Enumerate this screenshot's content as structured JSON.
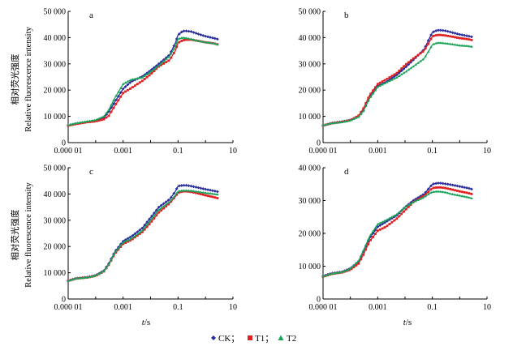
{
  "figure": {
    "ylabel_cn": "相对荧光强度",
    "ylabel_en": "Relative fluorescence intensity",
    "xlabel_var": "t",
    "xlabel_unit": "/s"
  },
  "legend": {
    "items": [
      {
        "label": "CK；",
        "color": "#2b2f9e",
        "marker": "diamond"
      },
      {
        "label": "T1；",
        "color": "#e02020",
        "marker": "square"
      },
      {
        "label": "T2",
        "color": "#1aa35a",
        "marker": "triangle"
      }
    ]
  },
  "colors": {
    "CK": "#2b2f9e",
    "T1": "#e02020",
    "T2": "#1aa35a"
  },
  "chart_data": [
    {
      "type": "line",
      "panel": "a",
      "title": "",
      "xlabel": "t/s",
      "ylabel": "Relative fluorescence intensity",
      "xscale": "log",
      "xlim": [
        1e-05,
        10
      ],
      "ylim": [
        0,
        50000
      ],
      "xticks": [
        {
          "v": 1e-05,
          "label": "0.000 01"
        },
        {
          "v": 0.001,
          "label": "0.001"
        },
        {
          "v": 0.1,
          "label": "0.1"
        },
        {
          "v": 10,
          "label": "10"
        }
      ],
      "yticks": [
        {
          "v": 0,
          "label": "0"
        },
        {
          "v": 10000,
          "label": "10 000"
        },
        {
          "v": 20000,
          "label": "20 000"
        },
        {
          "v": 30000,
          "label": "30 000"
        },
        {
          "v": 40000,
          "label": "40 000"
        },
        {
          "v": 50000,
          "label": "50 000"
        }
      ],
      "x": [
        1e-05,
        2e-05,
        5e-05,
        0.0001,
        0.0002,
        0.0003,
        0.0005,
        0.001,
        0.002,
        0.005,
        0.01,
        0.02,
        0.05,
        0.08,
        0.1,
        0.15,
        0.2,
        0.3,
        0.5,
        1,
        2,
        3
      ],
      "series": [
        {
          "name": "CK",
          "values": [
            6600,
            7300,
            7900,
            8400,
            9600,
            11800,
            15500,
            20500,
            23300,
            25200,
            27500,
            30000,
            33500,
            38000,
            41000,
            42500,
            42500,
            42300,
            41500,
            40500,
            39800,
            39300
          ]
        },
        {
          "name": "T1",
          "values": [
            6500,
            7100,
            7800,
            8100,
            8900,
            10200,
            14000,
            18900,
            20800,
            23500,
            26000,
            29000,
            31500,
            35000,
            38000,
            39000,
            39200,
            39200,
            38800,
            38200,
            37800,
            37300
          ]
        },
        {
          "name": "T2",
          "values": [
            6700,
            7400,
            8100,
            8600,
            10000,
            12500,
            17000,
            22300,
            24000,
            24800,
            26900,
            29300,
            33000,
            36500,
            39500,
            40000,
            39800,
            39400,
            38800,
            38200,
            37800,
            37200
          ]
        }
      ]
    },
    {
      "type": "line",
      "panel": "b",
      "title": "",
      "xlabel": "t/s",
      "ylabel": "Relative fluorescence intensity",
      "xscale": "log",
      "xlim": [
        1e-05,
        10
      ],
      "ylim": [
        0,
        50000
      ],
      "xticks": [
        {
          "v": 1e-05,
          "label": "0.000 01"
        },
        {
          "v": 0.001,
          "label": "0.001"
        },
        {
          "v": 0.1,
          "label": "0.1"
        },
        {
          "v": 10,
          "label": "10"
        }
      ],
      "yticks": [
        {
          "v": 0,
          "label": "0"
        },
        {
          "v": 10000,
          "label": "10 000"
        },
        {
          "v": 20000,
          "label": "20 000"
        },
        {
          "v": 30000,
          "label": "30 000"
        },
        {
          "v": 40000,
          "label": "40 000"
        },
        {
          "v": 50000,
          "label": "50 000"
        }
      ],
      "x": [
        1e-05,
        2e-05,
        5e-05,
        0.0001,
        0.0002,
        0.0003,
        0.0005,
        0.001,
        0.002,
        0.005,
        0.01,
        0.02,
        0.05,
        0.08,
        0.1,
        0.15,
        0.2,
        0.3,
        0.5,
        1,
        2,
        3
      ],
      "series": [
        {
          "name": "CK",
          "values": [
            6500,
            7400,
            8000,
            8600,
            10000,
            12200,
            17000,
            21500,
            23000,
            25800,
            28500,
            31500,
            35500,
            40000,
            42000,
            42800,
            42800,
            42600,
            42000,
            41200,
            40600,
            40200
          ]
        },
        {
          "name": "T1",
          "values": [
            6500,
            7300,
            7900,
            8500,
            10300,
            13000,
            18000,
            22300,
            24000,
            26500,
            29500,
            32000,
            35000,
            38500,
            40500,
            41000,
            41000,
            40800,
            40400,
            39800,
            39400,
            39000
          ]
        },
        {
          "name": "T2",
          "values": [
            6600,
            7300,
            7800,
            8400,
            9800,
            12000,
            16800,
            21200,
            22800,
            24800,
            26800,
            29000,
            32000,
            35500,
            37300,
            38000,
            38000,
            37800,
            37500,
            37000,
            36800,
            36500
          ]
        }
      ]
    },
    {
      "type": "line",
      "panel": "c",
      "title": "",
      "xlabel": "t/s",
      "ylabel": "Relative fluorescence intensity",
      "xscale": "log",
      "xlim": [
        1e-05,
        10
      ],
      "ylim": [
        0,
        50000
      ],
      "xticks": [
        {
          "v": 1e-05,
          "label": "0.000 01"
        },
        {
          "v": 0.001,
          "label": "0.001"
        },
        {
          "v": 0.1,
          "label": "0.1"
        },
        {
          "v": 10,
          "label": "10"
        }
      ],
      "yticks": [
        {
          "v": 0,
          "label": "0"
        },
        {
          "v": 10000,
          "label": "10 000"
        },
        {
          "v": 20000,
          "label": "20 000"
        },
        {
          "v": 30000,
          "label": "30 000"
        },
        {
          "v": 40000,
          "label": "40 000"
        },
        {
          "v": 50000,
          "label": "50 000"
        }
      ],
      "x": [
        1e-05,
        2e-05,
        5e-05,
        0.0001,
        0.0002,
        0.0003,
        0.0005,
        0.001,
        0.002,
        0.005,
        0.01,
        0.02,
        0.05,
        0.08,
        0.1,
        0.15,
        0.2,
        0.3,
        0.5,
        1,
        2,
        3
      ],
      "series": [
        {
          "name": "CK",
          "values": [
            7000,
            7900,
            8300,
            9000,
            10800,
            13500,
            18000,
            22000,
            23800,
            27000,
            31000,
            35000,
            38000,
            41000,
            43000,
            43300,
            43300,
            43000,
            42500,
            41800,
            41200,
            40800
          ]
        },
        {
          "name": "T1",
          "values": [
            6900,
            7800,
            8200,
            8800,
            10500,
            13000,
            17200,
            21000,
            22500,
            25500,
            29000,
            33000,
            36500,
            39000,
            40500,
            41000,
            41000,
            40800,
            40300,
            39500,
            38800,
            38300
          ]
        },
        {
          "name": "T2",
          "values": [
            6900,
            7800,
            8200,
            8900,
            10600,
            13200,
            17600,
            21500,
            23000,
            26000,
            30000,
            34000,
            37000,
            39500,
            41000,
            41300,
            41300,
            41200,
            40900,
            40400,
            40000,
            39800
          ]
        }
      ]
    },
    {
      "type": "line",
      "panel": "d",
      "title": "",
      "xlabel": "t/s",
      "ylabel": "Relative fluorescence intensity",
      "xscale": "log",
      "xlim": [
        1e-05,
        10
      ],
      "ylim": [
        0,
        40000
      ],
      "xticks": [
        {
          "v": 1e-05,
          "label": "0.000 01"
        },
        {
          "v": 0.001,
          "label": "0.001"
        },
        {
          "v": 0.1,
          "label": "0.1"
        },
        {
          "v": 10,
          "label": "10"
        }
      ],
      "yticks": [
        {
          "v": 0,
          "label": "0"
        },
        {
          "v": 10000,
          "label": "10 000"
        },
        {
          "v": 20000,
          "label": "20 000"
        },
        {
          "v": 30000,
          "label": "30 000"
        },
        {
          "v": 40000,
          "label": "40 000"
        }
      ],
      "x": [
        1e-05,
        2e-05,
        5e-05,
        0.0001,
        0.0002,
        0.0003,
        0.0005,
        0.001,
        0.002,
        0.005,
        0.01,
        0.02,
        0.05,
        0.08,
        0.1,
        0.15,
        0.2,
        0.3,
        0.5,
        1,
        2,
        3
      ],
      "series": [
        {
          "name": "CK",
          "values": [
            7000,
            7800,
            8300,
            9300,
            11500,
            14500,
            18500,
            22000,
            23500,
            25500,
            28000,
            30000,
            32000,
            34000,
            35000,
            35300,
            35300,
            35100,
            34800,
            34300,
            33800,
            33400
          ]
        },
        {
          "name": "T1",
          "values": [
            6800,
            7600,
            8100,
            8900,
            10800,
            13500,
            17500,
            20800,
            22000,
            24500,
            27000,
            29500,
            31500,
            33000,
            33800,
            34000,
            34000,
            33800,
            33400,
            32800,
            32300,
            31900
          ]
        },
        {
          "name": "T2",
          "values": [
            6900,
            7700,
            8200,
            9200,
            11600,
            14800,
            19000,
            22800,
            24000,
            25800,
            28000,
            29500,
            31000,
            32200,
            32600,
            32800,
            32700,
            32500,
            32000,
            31500,
            31000,
            30600
          ]
        }
      ]
    }
  ]
}
